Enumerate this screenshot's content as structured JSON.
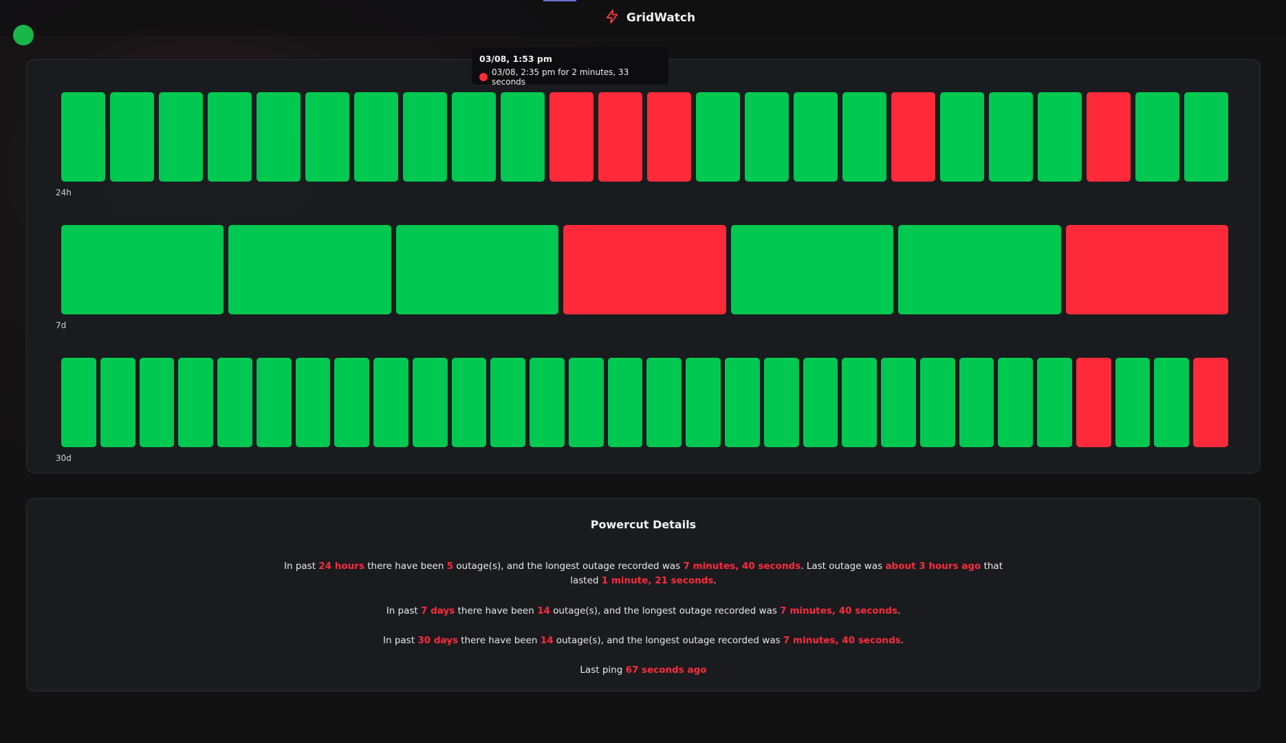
{
  "header": {
    "title": "GridWatch",
    "brand_icon": "lightning-bolt-icon",
    "accent_color": "#ff3b3b"
  },
  "status": {
    "icon": "status-online-dot",
    "color": "#19b64a"
  },
  "colors": {
    "up": "#00c851",
    "down": "#fe2a3a"
  },
  "timelines": {
    "h24": {
      "label": "24h",
      "states": [
        "up",
        "up",
        "up",
        "up",
        "up",
        "up",
        "up",
        "up",
        "up",
        "up",
        "down",
        "down",
        "down",
        "up",
        "up",
        "up",
        "up",
        "down",
        "up",
        "up",
        "up",
        "down",
        "up",
        "up"
      ]
    },
    "d7": {
      "label": "7d",
      "states": [
        "up",
        "up",
        "up",
        "down",
        "up",
        "up",
        "down"
      ]
    },
    "d30": {
      "label": "30d",
      "states": [
        "up",
        "up",
        "up",
        "up",
        "up",
        "up",
        "up",
        "up",
        "up",
        "up",
        "up",
        "up",
        "up",
        "up",
        "up",
        "up",
        "up",
        "up",
        "up",
        "up",
        "up",
        "up",
        "up",
        "up",
        "up",
        "up",
        "down",
        "up",
        "up",
        "down"
      ]
    }
  },
  "tooltip": {
    "title": "03/08, 1:53 pm",
    "entry": "03/08, 2:35 pm for 2 minutes, 33 seconds"
  },
  "details": {
    "title": "Powercut Details",
    "p24": {
      "t1": "In past ",
      "period": "24 hours",
      "t2": " there have been ",
      "count": "5",
      "t3": " outage(s), and the longest outage recorded was ",
      "longest": "7 minutes, 40 seconds",
      "t4": ". Last outage was ",
      "last_ago": "about 3 hours ago",
      "t5": " that lasted ",
      "last_duration": "1 minute, 21 seconds",
      "t6": "."
    },
    "p7": {
      "t1": "In past ",
      "period": "7 days",
      "t2": " there have been ",
      "count": "14",
      "t3": " outage(s), and the longest outage recorded was ",
      "longest": "7 minutes, 40 seconds",
      "t4": "."
    },
    "p30": {
      "t1": "In past ",
      "period": "30 days",
      "t2": " there have been ",
      "count": "14",
      "t3": " outage(s), and the longest outage recorded was ",
      "longest": "7 minutes, 40 seconds",
      "t4": "."
    },
    "ping": {
      "t1": "Last ping ",
      "value": "67 seconds ago"
    }
  }
}
